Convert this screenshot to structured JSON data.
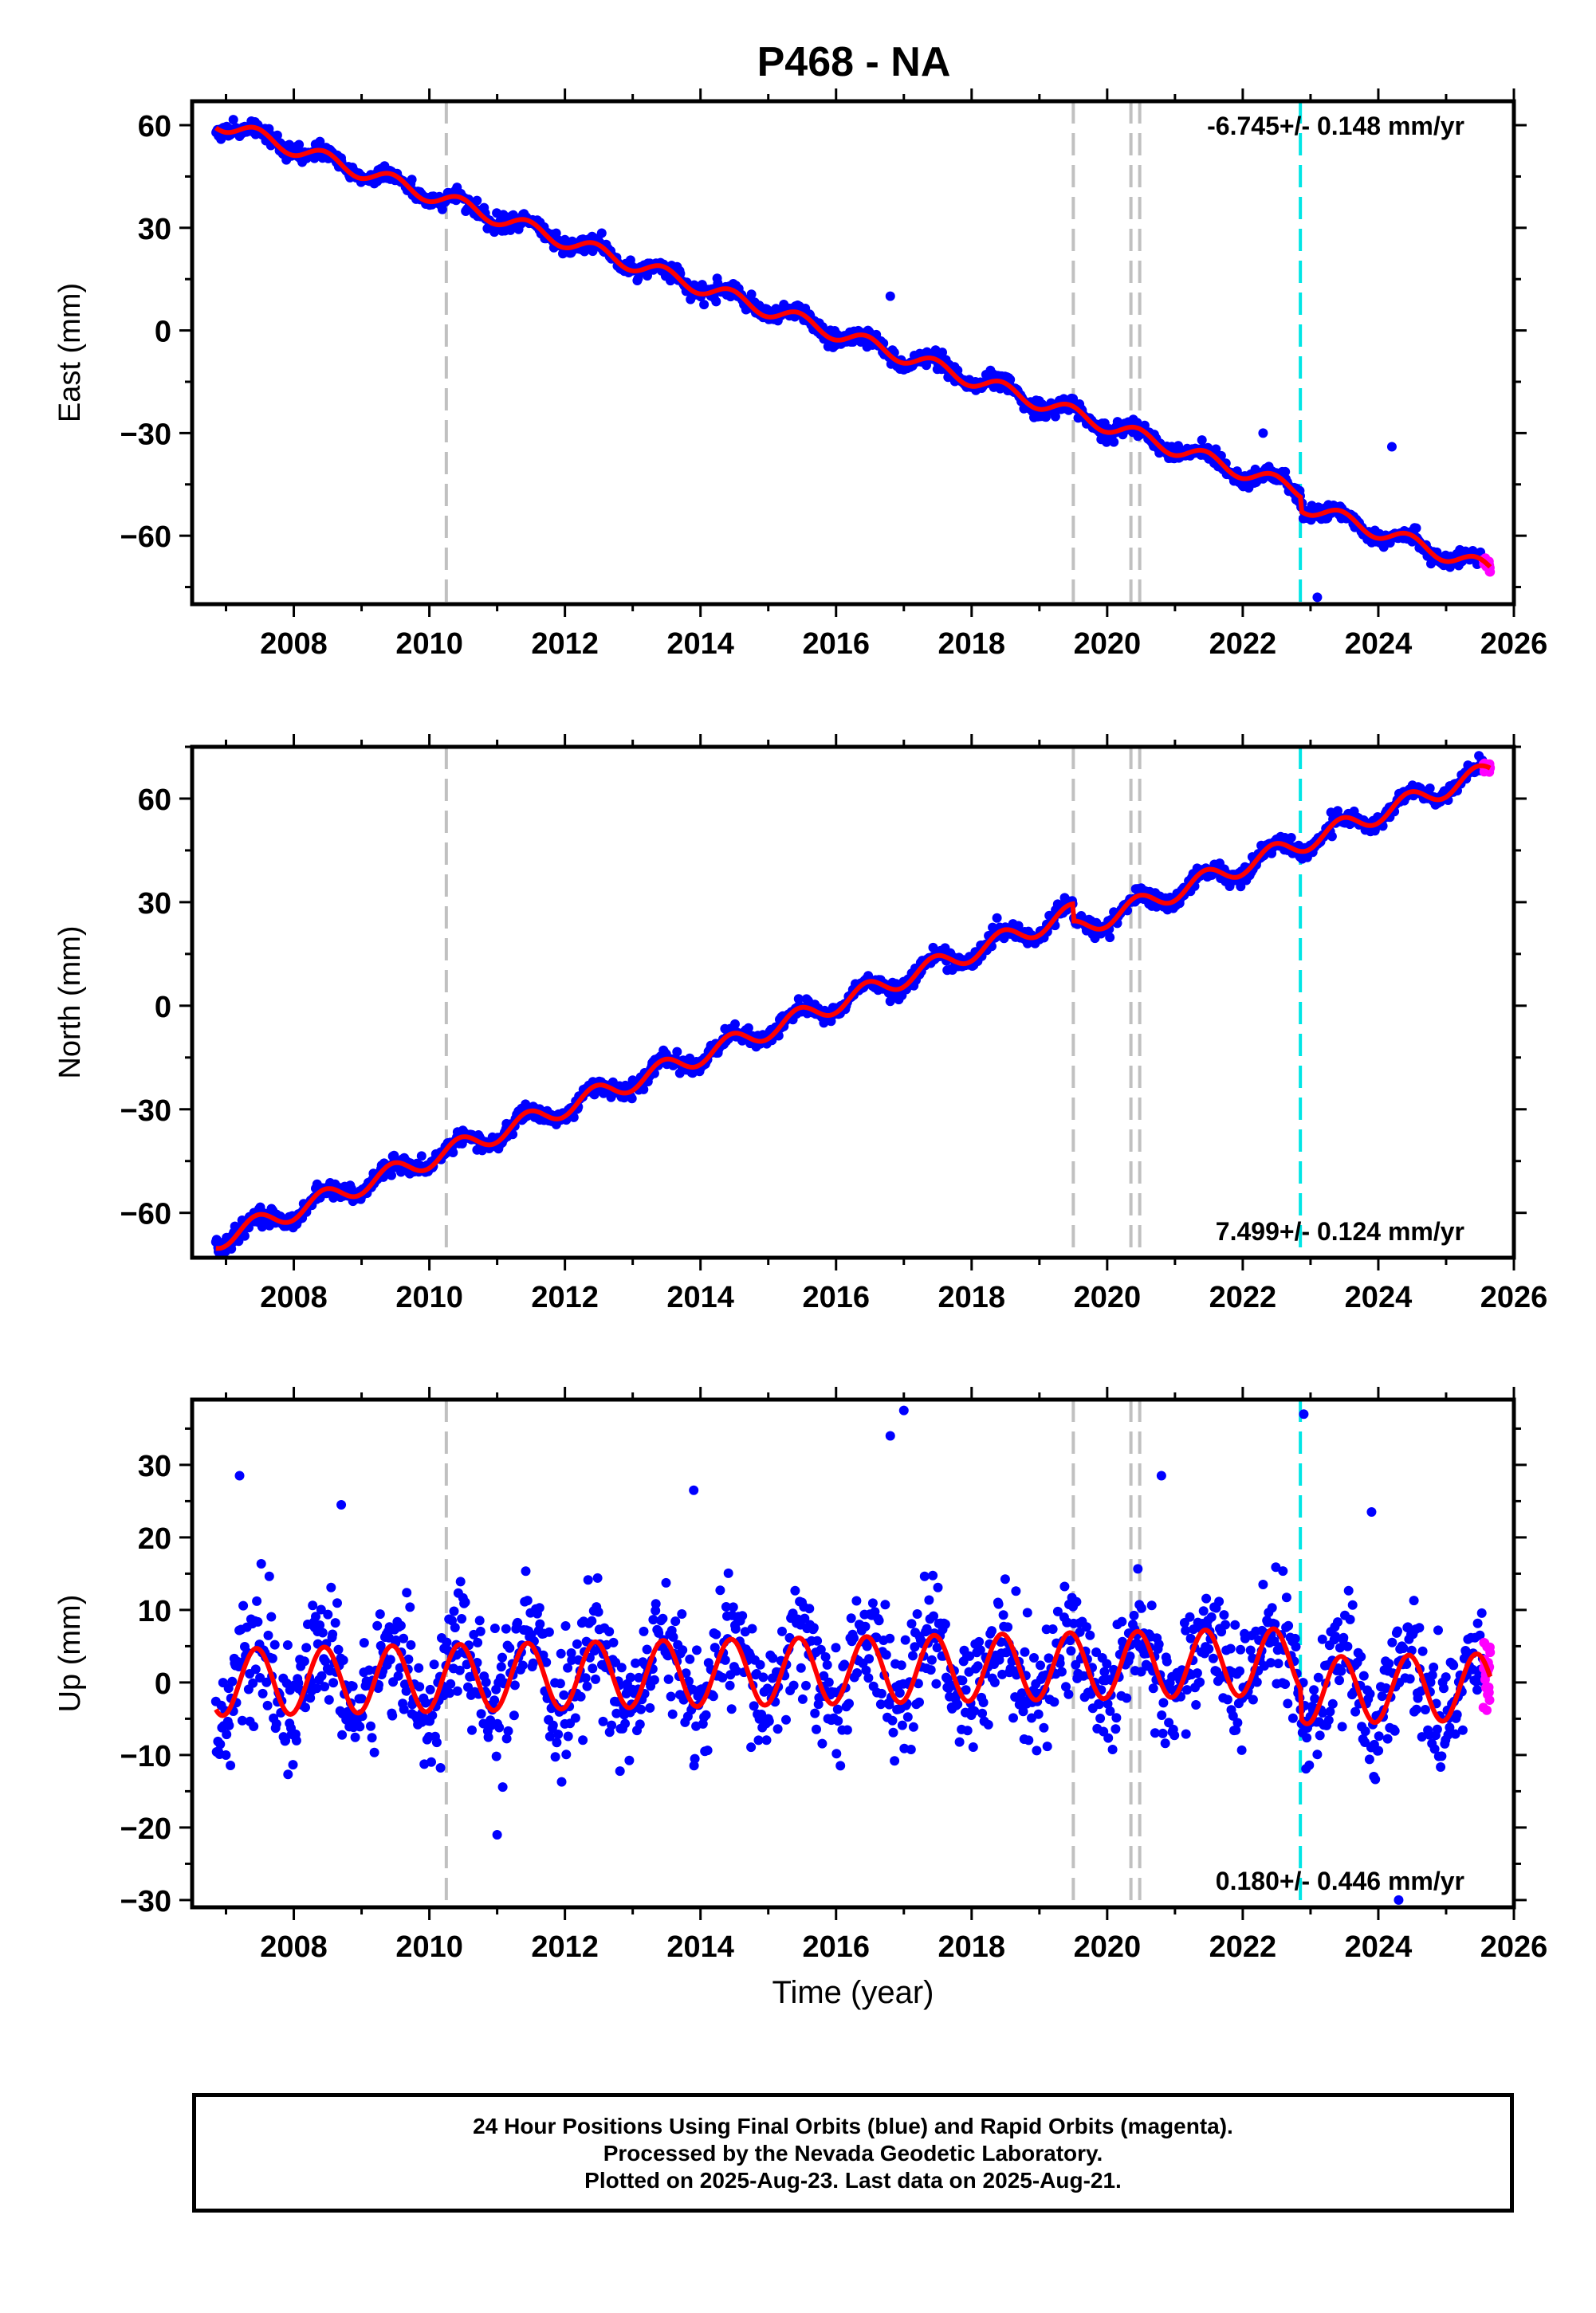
{
  "title": "P468 - NA",
  "colors": {
    "final_orbits": "#0000ff",
    "rapid_orbits": "#ff00ff",
    "model": "#ff0000",
    "equipment_change": "#c0c0c0",
    "event": "#00e5e5"
  },
  "footer": {
    "line1": "24 Hour Positions Using Final Orbits (blue) and Rapid Orbits (magenta).",
    "line2": "Processed by the Nevada Geodetic Laboratory.",
    "line3": "Plotted on 2025-Aug-23. Last data on 2025-Aug-21."
  },
  "chart_data": [
    {
      "type": "scatter",
      "component": "east",
      "ylabel": "East (mm)",
      "xlim": [
        2006.5,
        2026.0
      ],
      "ylim": [
        -80,
        67
      ],
      "xticks": [
        2008,
        2010,
        2012,
        2014,
        2016,
        2018,
        2020,
        2022,
        2024,
        2026
      ],
      "yticks": [
        60,
        30,
        0,
        -30,
        -60
      ],
      "velocity_label": "-6.745+/- 0.148 mm/yr",
      "velocity_label_pos": "top-right",
      "trend": {
        "slope_mm_per_yr": -6.745,
        "start": [
          2006.85,
          61
        ],
        "seasonal_amplitude": 2.2
      },
      "final_orbits_span": [
        2006.85,
        2025.55
      ],
      "rapid_orbits_span": [
        2025.55,
        2025.65
      ],
      "scatter_sd": 1.2,
      "step_offsets": [
        {
          "x": 2022.85,
          "dy": -4
        }
      ],
      "outliers": [
        [
          2016.8,
          10
        ],
        [
          2022.3,
          -30
        ],
        [
          2024.2,
          -34
        ],
        [
          2023.1,
          -78
        ]
      ]
    },
    {
      "type": "scatter",
      "component": "north",
      "ylabel": "North (mm)",
      "xlim": [
        2006.5,
        2026.0
      ],
      "ylim": [
        -73,
        75
      ],
      "xticks": [
        2008,
        2010,
        2012,
        2014,
        2016,
        2018,
        2020,
        2022,
        2024,
        2026
      ],
      "yticks": [
        60,
        30,
        0,
        -30,
        -60
      ],
      "velocity_label": "7.499+/- 0.124 mm/yr",
      "velocity_label_pos": "bottom-right",
      "trend": {
        "slope_mm_per_yr": 7.499,
        "start": [
          2006.85,
          -68
        ],
        "seasonal_amplitude": 2.8
      },
      "final_orbits_span": [
        2006.85,
        2025.55
      ],
      "rapid_orbits_span": [
        2025.55,
        2025.65
      ],
      "scatter_sd": 1.2,
      "step_offsets": [
        {
          "x": 2019.5,
          "dy": -5
        }
      ],
      "outliers": []
    },
    {
      "type": "scatter",
      "component": "up",
      "ylabel": "Up (mm)",
      "xlabel": "Time (year)",
      "xlim": [
        2006.5,
        2026.0
      ],
      "ylim": [
        -31,
        39
      ],
      "xticks": [
        2008,
        2010,
        2012,
        2014,
        2016,
        2018,
        2020,
        2022,
        2024,
        2026
      ],
      "yticks": [
        30,
        20,
        10,
        0,
        -10,
        -20,
        -30
      ],
      "velocity_label": "0.180+/- 0.446 mm/yr",
      "velocity_label_pos": "bottom-right",
      "trend": {
        "slope_mm_per_yr": 0.18,
        "start": [
          2006.85,
          0
        ],
        "seasonal_amplitude": 4.6
      },
      "final_orbits_span": [
        2006.85,
        2025.55
      ],
      "rapid_orbits_span": [
        2025.55,
        2025.65
      ],
      "scatter_sd": 4.0,
      "step_offsets": [
        {
          "x": 2022.85,
          "dy": -4
        }
      ],
      "outliers": [
        [
          2007.2,
          28.5
        ],
        [
          2008.7,
          24.5
        ],
        [
          2016.8,
          34
        ],
        [
          2017.0,
          37.5
        ],
        [
          2020.8,
          28.5
        ],
        [
          2022.9,
          37
        ],
        [
          2023.9,
          23.5
        ],
        [
          2013.9,
          26.5
        ],
        [
          2024.3,
          -30
        ],
        [
          2011.0,
          -21
        ]
      ]
    }
  ],
  "reference_lines": {
    "equipment_changes": [
      2010.25,
      2019.5,
      2020.35,
      2020.48
    ],
    "events": [
      2022.85
    ]
  }
}
